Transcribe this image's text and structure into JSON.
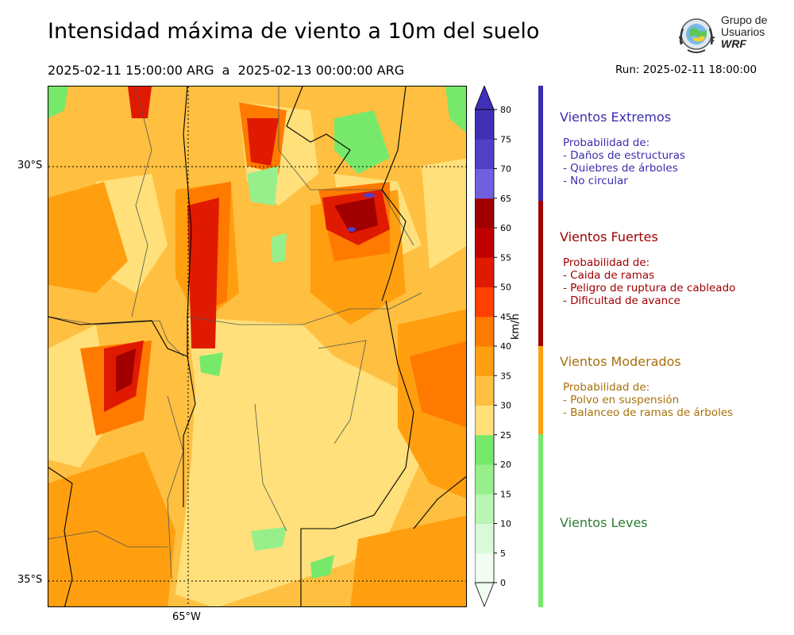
{
  "header": {
    "title": "Intensidad máxima de viento a 10m del suelo",
    "period": "2025-02-11 15:00:00 ARG  a  2025-02-13 00:00:00 ARG",
    "run": "Run: 2025-02-11 18:00:00"
  },
  "logo": {
    "line1": "Grupo de",
    "line2": "Usuarios",
    "line3": "WRF",
    "icon": "globe-emblem-icon"
  },
  "map": {
    "lat_labels": [
      "30°S",
      "35°S"
    ],
    "lon_labels": [
      "65°W"
    ],
    "gridlines": "dotted"
  },
  "colorbar": {
    "unit": "km/h",
    "ticks": [
      "0",
      "5",
      "10",
      "15",
      "20",
      "25",
      "30",
      "35",
      "40",
      "45",
      "50",
      "55",
      "60",
      "65",
      "70",
      "75",
      "80"
    ],
    "colors": [
      "#f0fdf0",
      "#d8fad8",
      "#b9f5b3",
      "#97ef8c",
      "#76e96a",
      "#ffe07a",
      "#ffbf40",
      "#ff9f10",
      "#ff7a00",
      "#ff4000",
      "#e01a00",
      "#c00000",
      "#a00000",
      "#7060e0",
      "#5040c8",
      "#4030b8"
    ]
  },
  "categories": [
    {
      "title": "Vientos Extremos",
      "color": "#3b2db0",
      "bar": "#3b2db0",
      "lines": [
        "Probabilidad de:",
        "- Daños de estructuras",
        "- Quiebres de árboles",
        "- No circular"
      ]
    },
    {
      "title": "Vientos Fuertes",
      "color": "#a00000",
      "bar": "#a00000",
      "lines": [
        "Probabilidad de:",
        "- Caida de ramas",
        "- Peligro de ruptura de cableado",
        "- Dificultad de avance"
      ]
    },
    {
      "title": "Vientos Moderados",
      "color": "#a8700a",
      "bar": "#ff9f10",
      "lines": [
        "Probabilidad de:",
        "- Polvo en suspensión",
        "- Balanceo de ramas de árboles"
      ]
    },
    {
      "title": "Vientos Leves",
      "color": "#2e7d32",
      "bar": "#76e96a",
      "lines": []
    }
  ]
}
